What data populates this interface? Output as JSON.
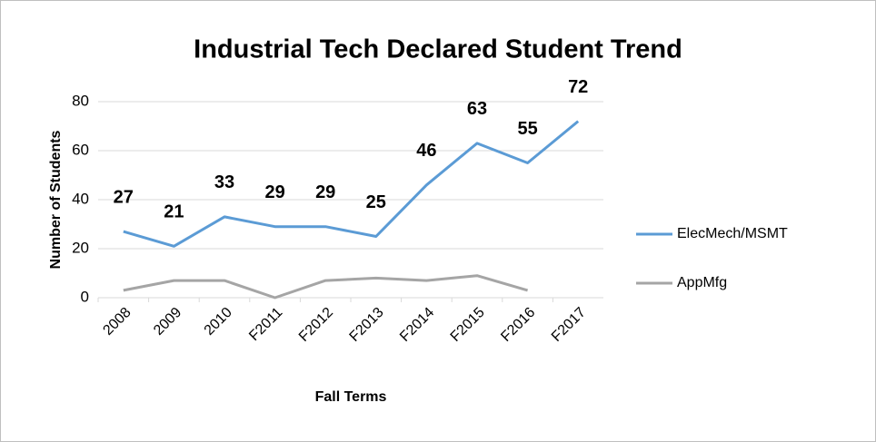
{
  "chart_data": {
    "type": "line",
    "title": "Industrial Tech Declared Student Trend",
    "x_label": "Fall Terms",
    "y_label": "Number of Students",
    "categories": [
      "2008",
      "2009",
      "2010",
      "F2011",
      "F2012",
      "F2013",
      "F2014",
      "F2015",
      "F2016",
      "F2017"
    ],
    "series": [
      {
        "name": "ElecMech/MSMT",
        "color": "#5b9bd5",
        "values": [
          27,
          21,
          33,
          29,
          29,
          25,
          46,
          63,
          55,
          72
        ],
        "data_labels": true
      },
      {
        "name": "AppMfg",
        "color": "#a5a5a5",
        "values": [
          3,
          7,
          7,
          0,
          7,
          8,
          7,
          9,
          3,
          null
        ],
        "data_labels": false
      }
    ],
    "ylim": [
      0,
      80
    ],
    "yticks": [
      0,
      20,
      40,
      60,
      80
    ],
    "grid": true,
    "legend": "right"
  }
}
